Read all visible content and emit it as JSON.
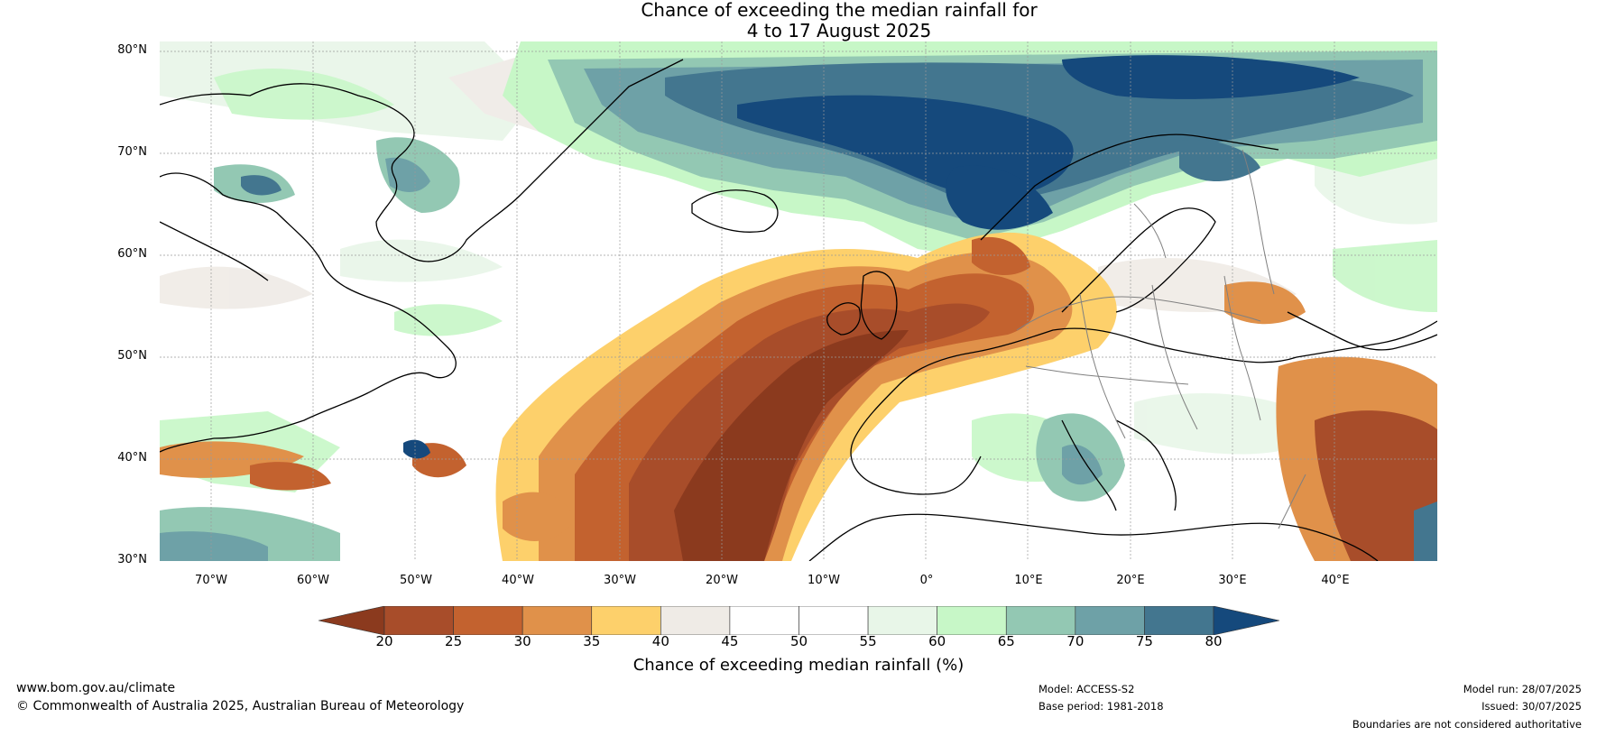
{
  "title": {
    "line1": "Chance of exceeding the median rainfall for",
    "line2": "4 to 17 August 2025"
  },
  "latitude_labels": [
    "80°N",
    "70°N",
    "60°N",
    "50°N",
    "40°N",
    "30°N"
  ],
  "longitude_labels": [
    "70°W",
    "60°W",
    "50°W",
    "40°W",
    "30°W",
    "20°W",
    "10°W",
    "0°",
    "10°E",
    "20°E",
    "30°E",
    "40°E"
  ],
  "colorbar": {
    "label": "Chance of exceeding median rainfall (%)",
    "ticks": [
      "20",
      "25",
      "30",
      "35",
      "40",
      "45",
      "50",
      "55",
      "60",
      "65",
      "70",
      "75",
      "80"
    ],
    "colors": [
      "#8b3a1e",
      "#a84d2a",
      "#c3622f",
      "#e0914a",
      "#fdd06b",
      "#efebe6",
      "#ffffff",
      "#ffffff",
      "#e8f6e8",
      "#c7f7c7",
      "#93c8b3",
      "#6ea1a7",
      "#43768f",
      "#15497c"
    ]
  },
  "footer": {
    "website": "www.bom.gov.au/climate",
    "copyright": "© Commonwealth of Australia 2025, Australian Bureau of Meteorology",
    "model": "Model: ACCESS-S2",
    "base_period": "Base period: 1981-2018",
    "model_run": "Model run: 28/07/2025",
    "issued": "Issued: 30/07/2025",
    "disclaimer": "Boundaries are not considered authoritative"
  }
}
